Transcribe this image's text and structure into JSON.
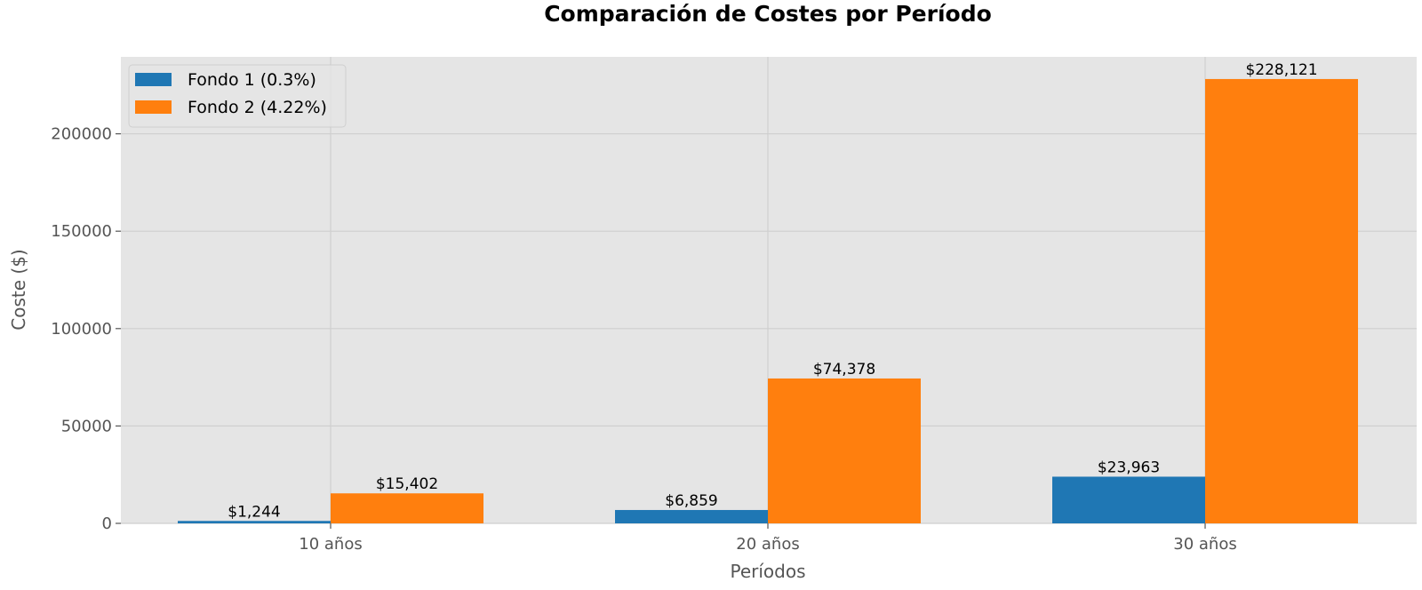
{
  "chart_data": {
    "type": "bar",
    "title": "Comparación de Costes por Período",
    "xlabel": "Períodos",
    "ylabel": "Coste ($)",
    "categories": [
      "10 años",
      "20 años",
      "30 años"
    ],
    "series": [
      {
        "name": "Fondo 1 (0.3%)",
        "color": "#1f77b4",
        "values": [
          1244,
          6859,
          23963
        ],
        "labels": [
          "$1,244",
          "$6,859",
          "$23,963"
        ]
      },
      {
        "name": "Fondo 2 (4.22%)",
        "color": "#ff7f0e",
        "values": [
          15402,
          74378,
          228121
        ],
        "labels": [
          "$15,402",
          "$74,378",
          "$228,121"
        ]
      }
    ],
    "ylim": [
      0,
      239500
    ],
    "yticks": [
      0,
      50000,
      100000,
      150000,
      200000
    ],
    "ytick_labels": [
      "0",
      "50000",
      "100000",
      "150000",
      "200000"
    ],
    "grid": true,
    "legend_position": "top-left",
    "background_color": "#e5e5e5",
    "grid_color": "#cfcfcf"
  }
}
